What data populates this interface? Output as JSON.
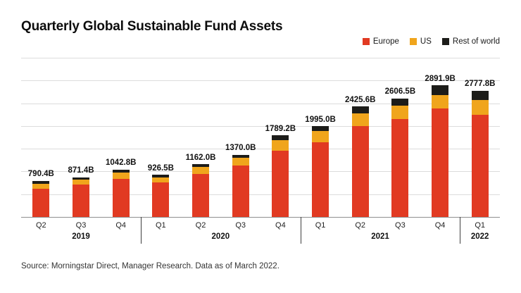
{
  "header": {
    "title": "Quarterly Global Sustainable Fund Assets"
  },
  "legend": [
    {
      "label": "Europe",
      "color": "#e13a22"
    },
    {
      "label": "US",
      "color": "#f0a51c"
    },
    {
      "label": "Rest of world",
      "color": "#1c1c19"
    }
  ],
  "chart_data": {
    "type": "bar",
    "stacked": true,
    "title": "Quarterly Global Sustainable Fund Assets",
    "categories": [
      "Q2",
      "Q3",
      "Q4",
      "Q1",
      "Q2",
      "Q3",
      "Q4",
      "Q1",
      "Q2",
      "Q3",
      "Q4",
      "Q1"
    ],
    "year_groups": [
      {
        "label": "2019",
        "span": 3
      },
      {
        "label": "2020",
        "span": 4
      },
      {
        "label": "2021",
        "span": 4
      },
      {
        "label": "2022",
        "span": 1
      }
    ],
    "series": [
      {
        "name": "Europe",
        "color": "#e13a22",
        "values": [
          625.0,
          716.0,
          839.8,
          758.5,
          947.0,
          1124.0,
          1461.2,
          1644.0,
          2003.6,
          2146.0,
          2378.9,
          2251.8
        ]
      },
      {
        "name": "US",
        "color": "#f0a51c",
        "values": [
          103.4,
          102.4,
          142.0,
          115.0,
          147.0,
          173.0,
          224.0,
          246.0,
          267.0,
          296.5,
          308.0,
          322.0
        ]
      },
      {
        "name": "Rest of world",
        "color": "#1c1c19",
        "values": [
          62.0,
          53.0,
          61.0,
          53.0,
          68.0,
          73.0,
          104.0,
          105.0,
          155.0,
          164.0,
          205.0,
          204.0
        ]
      }
    ],
    "totals": [
      790.4,
      871.4,
      1042.8,
      926.5,
      1162.0,
      1370.0,
      1789.2,
      1995.0,
      2425.6,
      2606.5,
      2891.9,
      2777.8
    ],
    "total_labels": [
      "790.4B",
      "871.4B",
      "1042.8B",
      "926.5B",
      "1162.0B",
      "1370.0B",
      "1789.2B",
      "1995.0B",
      "2425.6B",
      "2606.5B",
      "2891.9B",
      "2777.8B"
    ],
    "xlabel": "",
    "ylabel": "",
    "ylim": [
      0,
      3500
    ],
    "gridline_step": 500,
    "grid": true,
    "legend_position": "top-right",
    "units": "billions USD"
  },
  "footer": {
    "source": "Source: Morningstar Direct, Manager Research. Data as of March 2022."
  }
}
